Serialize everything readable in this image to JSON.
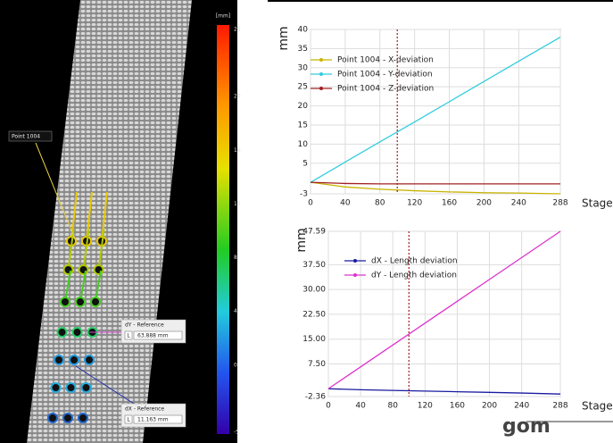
{
  "colorbar": {
    "unit": "[mm]",
    "ticks": [
      25,
      20,
      16,
      12,
      8,
      4,
      0,
      -5
    ]
  },
  "image_labels": {
    "point": "Point 1004",
    "dy_reference": {
      "title": "dY - Reference",
      "key": "L",
      "value": "63.888 mm"
    },
    "dx_reference": {
      "title": "dX - Reference",
      "key": "L",
      "value": "11.163 mm"
    }
  },
  "logo": "gom",
  "chart_data": [
    {
      "type": "line",
      "ylabel": "mm",
      "xlabel": "Stage",
      "x": [
        0,
        40,
        80,
        120,
        160,
        200,
        240,
        288
      ],
      "xlim": [
        0,
        288
      ],
      "xticks": [
        0,
        40,
        80,
        120,
        160,
        200,
        240,
        288
      ],
      "ylim": [
        -3,
        40
      ],
      "yticks": [
        -3,
        5,
        10,
        15,
        20,
        25,
        30,
        35,
        40
      ],
      "grid": true,
      "legend": "upper left",
      "marker_x": 100,
      "series": [
        {
          "name": "Point 1004 - X-deviation",
          "color": "#c8b400",
          "values": [
            0,
            -1.2,
            -1.8,
            -2.2,
            -2.5,
            -2.7,
            -2.8,
            -3
          ]
        },
        {
          "name": "Point 1004 - Y-deviation",
          "color": "#33ccdd",
          "values": [
            0,
            5.3,
            10.6,
            15.8,
            21.1,
            26.4,
            31.7,
            38
          ]
        },
        {
          "name": "Point 1004 - Z-deviation",
          "color": "#a02020",
          "values": [
            0,
            -0.3,
            -0.4,
            -0.4,
            -0.4,
            -0.4,
            -0.4,
            -0.4
          ]
        }
      ]
    },
    {
      "type": "line",
      "ylabel": "mm",
      "xlabel": "Stage",
      "x": [
        0,
        40,
        80,
        120,
        160,
        200,
        240,
        288
      ],
      "xlim": [
        0,
        288
      ],
      "xticks": [
        0,
        40,
        80,
        120,
        160,
        200,
        240,
        288
      ],
      "ylim": [
        -2.36,
        47.59
      ],
      "yticks": [
        -2.36,
        {
          "value": 7.5,
          "label": "7.50"
        },
        {
          "value": 15,
          "label": "15.00"
        },
        {
          "value": 22.5,
          "label": "22.50"
        },
        {
          "value": 30,
          "label": "30.00"
        },
        {
          "value": 37.5,
          "label": "37.50"
        },
        47.59
      ],
      "grid": true,
      "legend": "upper left",
      "marker_x": 100,
      "series": [
        {
          "name": "dX - Length deviation",
          "color": "#1a1aa0",
          "values": [
            0,
            -0.3,
            -0.5,
            -0.7,
            -0.9,
            -1.1,
            -1.3,
            -1.6
          ]
        },
        {
          "name": "dY - Length deviation",
          "color": "#dd33cc",
          "values": [
            0,
            6.61,
            13.22,
            19.83,
            26.44,
            33.05,
            39.66,
            47.59
          ]
        }
      ]
    }
  ]
}
